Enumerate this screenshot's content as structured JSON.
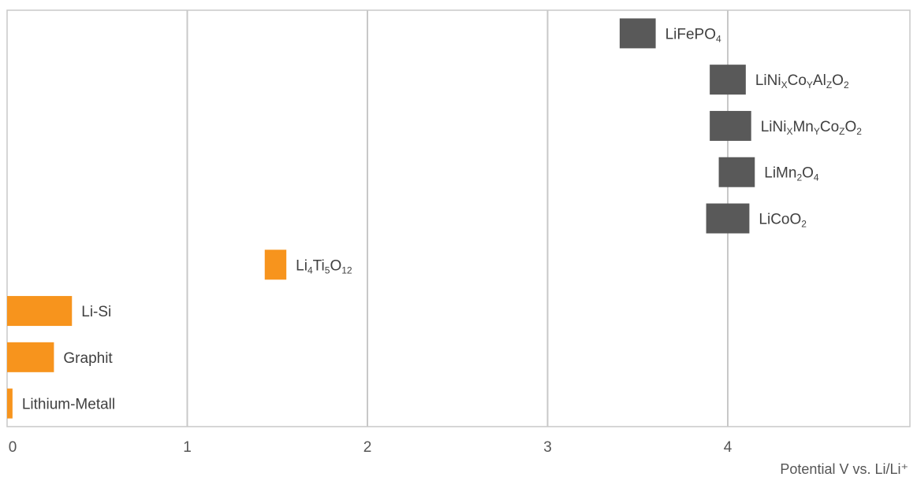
{
  "chart_data": {
    "type": "bar",
    "orientation": "horizontal",
    "title": "",
    "xlabel": "Potential V vs. Li/Li⁺",
    "ylabel": "",
    "xlim": [
      0,
      4.96
    ],
    "x_ticks": [
      0,
      1,
      2,
      3,
      4
    ],
    "grid": "vertical",
    "legend": "none",
    "colors": {
      "anode": "#F7941D",
      "cathode": "#595959",
      "grid": "#C8C8C8"
    },
    "bars": [
      {
        "label": [
          [
            "LiFePO"
          ],
          [
            "4",
            "sub"
          ]
        ],
        "start": 3.4,
        "end": 3.6,
        "group": "cathode"
      },
      {
        "label": [
          [
            "LiNi"
          ],
          [
            "X",
            "sub"
          ],
          [
            "Co"
          ],
          [
            "Y",
            "sub"
          ],
          [
            "Al"
          ],
          [
            "Z",
            "sub"
          ],
          [
            "O"
          ],
          [
            "2",
            "sub"
          ]
        ],
        "start": 3.9,
        "end": 4.1,
        "group": "cathode"
      },
      {
        "label": [
          [
            "LiNi"
          ],
          [
            "X",
            "sub"
          ],
          [
            "Mn"
          ],
          [
            "Y",
            "sub"
          ],
          [
            "Co"
          ],
          [
            "Z",
            "sub"
          ],
          [
            "O"
          ],
          [
            "2",
            "sub"
          ]
        ],
        "start": 3.9,
        "end": 4.13,
        "group": "cathode"
      },
      {
        "label": [
          [
            "LiMn"
          ],
          [
            "2",
            "sub"
          ],
          [
            "O"
          ],
          [
            "4",
            "sub"
          ]
        ],
        "start": 3.95,
        "end": 4.15,
        "group": "cathode"
      },
      {
        "label": [
          [
            "LiCoO"
          ],
          [
            "2",
            "sub"
          ]
        ],
        "start": 3.88,
        "end": 4.12,
        "group": "cathode"
      },
      {
        "label": [
          [
            "Li"
          ],
          [
            "4",
            "sub"
          ],
          [
            "Ti"
          ],
          [
            "5",
            "sub"
          ],
          [
            "O"
          ],
          [
            "12",
            "sub"
          ]
        ],
        "start": 1.43,
        "end": 1.55,
        "group": "anode"
      },
      {
        "label": [
          [
            "Li-Si"
          ]
        ],
        "start": 0.0,
        "end": 0.36,
        "group": "anode"
      },
      {
        "label": [
          [
            "Graphit"
          ]
        ],
        "start": 0.0,
        "end": 0.26,
        "group": "anode"
      },
      {
        "label": [
          [
            "Lithium-Metall"
          ]
        ],
        "start": 0.0,
        "end": 0.03,
        "group": "anode"
      }
    ]
  }
}
